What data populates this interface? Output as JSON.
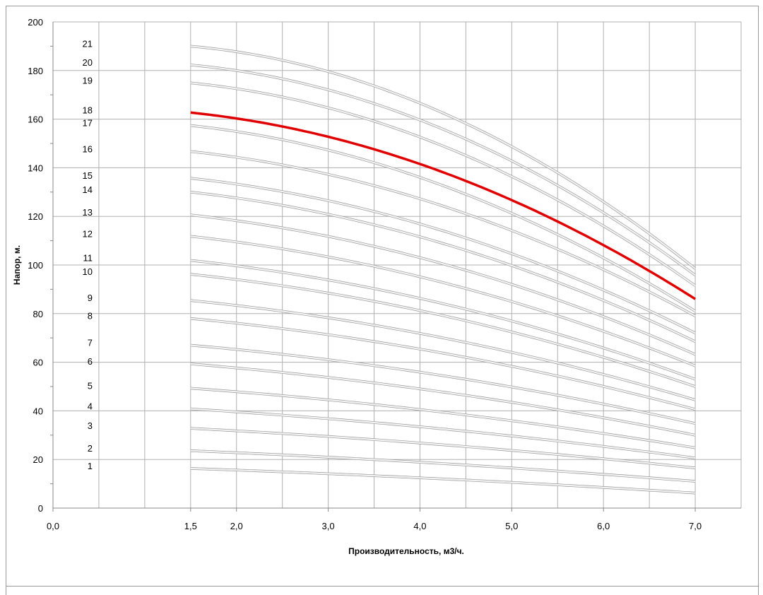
{
  "chart_data": {
    "type": "line",
    "xlabel": "Производительность, м3/ч.",
    "ylabel": "Напор, м.",
    "xlim": [
      0,
      7.5
    ],
    "ylim": [
      0,
      200
    ],
    "x_ticks": [
      0,
      1.5,
      2,
      3,
      4,
      5,
      6,
      7
    ],
    "x_tick_labels": [
      "0,0",
      "1,5",
      "2,0",
      "3,0",
      "4,0",
      "5,0",
      "6,0",
      "7,0"
    ],
    "y_ticks": [
      0,
      20,
      40,
      60,
      80,
      100,
      120,
      140,
      160,
      180,
      200
    ],
    "y_tick_labels": [
      "0",
      "20",
      "40",
      "60",
      "80",
      "100",
      "120",
      "140",
      "160",
      "180",
      "200"
    ],
    "grid": true,
    "x": [
      1.5,
      2.0,
      2.5,
      3.0,
      3.5,
      4.0,
      4.5,
      5.0,
      5.5,
      6.0,
      6.5,
      7.0
    ],
    "colors": {
      "highlight": "#e00000",
      "other": "#d0d0d0",
      "grid": "#b0b0b0"
    },
    "highlight_series": "18",
    "series": [
      {
        "name": "1",
        "h0": 16.3,
        "h7": 6.2
      },
      {
        "name": "2",
        "h0": 23.6,
        "h7": 11.0
      },
      {
        "name": "3",
        "h0": 32.8,
        "h7": 16.5
      },
      {
        "name": "4",
        "h0": 40.8,
        "h7": 20.6
      },
      {
        "name": "5",
        "h0": 49.3,
        "h7": 24.8
      },
      {
        "name": "6",
        "h0": 59.3,
        "h7": 30.0
      },
      {
        "name": "7",
        "h0": 67.0,
        "h7": 34.8
      },
      {
        "name": "8",
        "h0": 78.0,
        "h7": 40.6
      },
      {
        "name": "9",
        "h0": 85.4,
        "h7": 44.5
      },
      {
        "name": "10",
        "h0": 96.2,
        "h7": 50.0
      },
      {
        "name": "11",
        "h0": 101.9,
        "h7": 53.0
      },
      {
        "name": "12",
        "h0": 111.8,
        "h7": 58.5
      },
      {
        "name": "13",
        "h0": 120.6,
        "h7": 63.2
      },
      {
        "name": "14",
        "h0": 130.0,
        "h7": 68.5
      },
      {
        "name": "15",
        "h0": 135.7,
        "h7": 72.0
      },
      {
        "name": "16",
        "h0": 146.7,
        "h7": 79.0
      },
      {
        "name": "17",
        "h0": 157.4,
        "h7": 81.0
      },
      {
        "name": "18",
        "h0": 162.7,
        "h7": 86.0
      },
      {
        "name": "19",
        "h0": 174.9,
        "h7": 91.5
      },
      {
        "name": "20",
        "h0": 182.3,
        "h7": 95.8
      },
      {
        "name": "21",
        "h0": 190.0,
        "h7": 98.5
      }
    ]
  }
}
